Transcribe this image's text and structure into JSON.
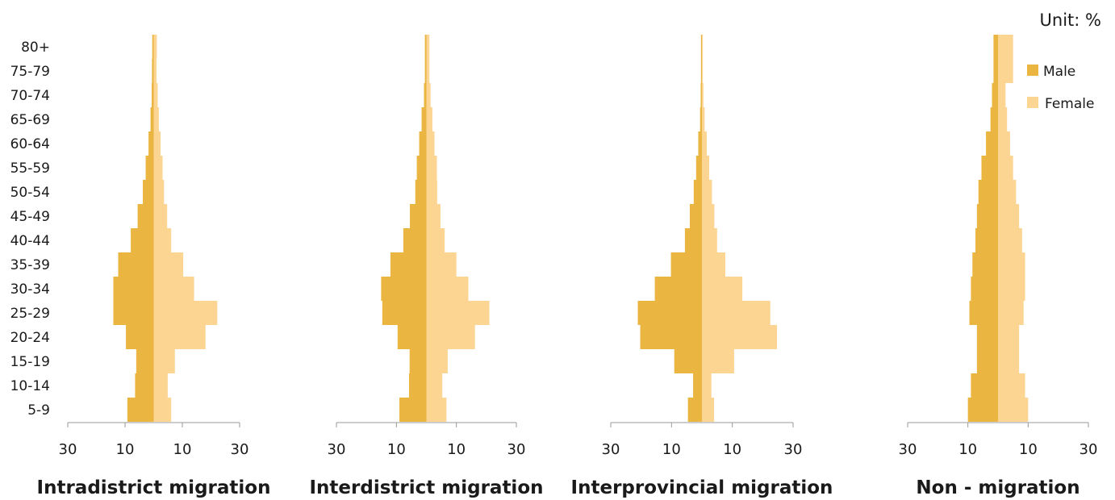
{
  "unit_label": "Unit: %",
  "legend": [
    {
      "label": "Male",
      "color": "#EAB540"
    },
    {
      "label": "Female",
      "color": "#FCD593"
    }
  ],
  "chart_data": {
    "type": "bar",
    "orientation": "horizontal-population-pyramid",
    "age_groups": [
      "80+",
      "75-79",
      "70-74",
      "65-69",
      "60-64",
      "55-59",
      "50-54",
      "45-49",
      "40-44",
      "35-39",
      "30-34",
      "25-29",
      "20-24",
      "15-19",
      "10-14",
      "5-9"
    ],
    "x_ticks": [
      "30",
      "10",
      "10",
      "30"
    ],
    "panels": [
      {
        "title": "Intradistrict migration",
        "male": [
          0.5,
          0.6,
          0.7,
          1.1,
          1.8,
          2.8,
          3.8,
          5.6,
          8.0,
          12.4,
          14.1,
          14.1,
          9.7,
          6.1,
          6.5,
          9.2
        ],
        "female": [
          1.1,
          1.0,
          1.4,
          1.8,
          2.4,
          3.1,
          3.6,
          4.7,
          6.1,
          10.3,
          14.1,
          22.2,
          18.1,
          7.4,
          4.9,
          6.1
        ]
      },
      {
        "title": "Interdistrict migration",
        "male": [
          0.5,
          0.5,
          0.8,
          1.6,
          2.4,
          3.2,
          3.7,
          5.5,
          7.7,
          12.0,
          15.1,
          14.7,
          9.6,
          5.6,
          5.8,
          9.0
        ],
        "female": [
          1.0,
          1.0,
          1.4,
          2.0,
          2.7,
          3.5,
          3.6,
          4.7,
          6.1,
          10.0,
          14.0,
          21.0,
          16.2,
          7.1,
          5.3,
          6.7
        ]
      },
      {
        "title": "Interprovincial migration",
        "male": [
          0.3,
          0.3,
          0.4,
          0.6,
          1.2,
          1.9,
          2.7,
          4.0,
          5.6,
          10.2,
          15.5,
          21.1,
          20.3,
          9.1,
          2.9,
          4.6
        ],
        "female": [
          0.3,
          0.3,
          0.5,
          0.9,
          1.6,
          2.4,
          3.3,
          4.1,
          5.0,
          7.7,
          13.3,
          22.5,
          24.7,
          10.6,
          3.1,
          4.0
        ]
      },
      {
        "title": "Non - migration",
        "male": [
          1.5,
          1.5,
          2.0,
          2.5,
          4.0,
          5.5,
          6.5,
          7.0,
          7.5,
          8.5,
          9.0,
          9.5,
          7.0,
          7.0,
          9.0,
          10.0
        ],
        "female": [
          5.0,
          5.0,
          2.5,
          3.0,
          4.0,
          5.0,
          6.0,
          7.0,
          8.0,
          9.0,
          9.0,
          8.5,
          7.0,
          7.0,
          9.0,
          10.0
        ]
      }
    ],
    "xlim": [
      -30,
      30
    ],
    "grid": false,
    "legend_position": "top-right"
  }
}
